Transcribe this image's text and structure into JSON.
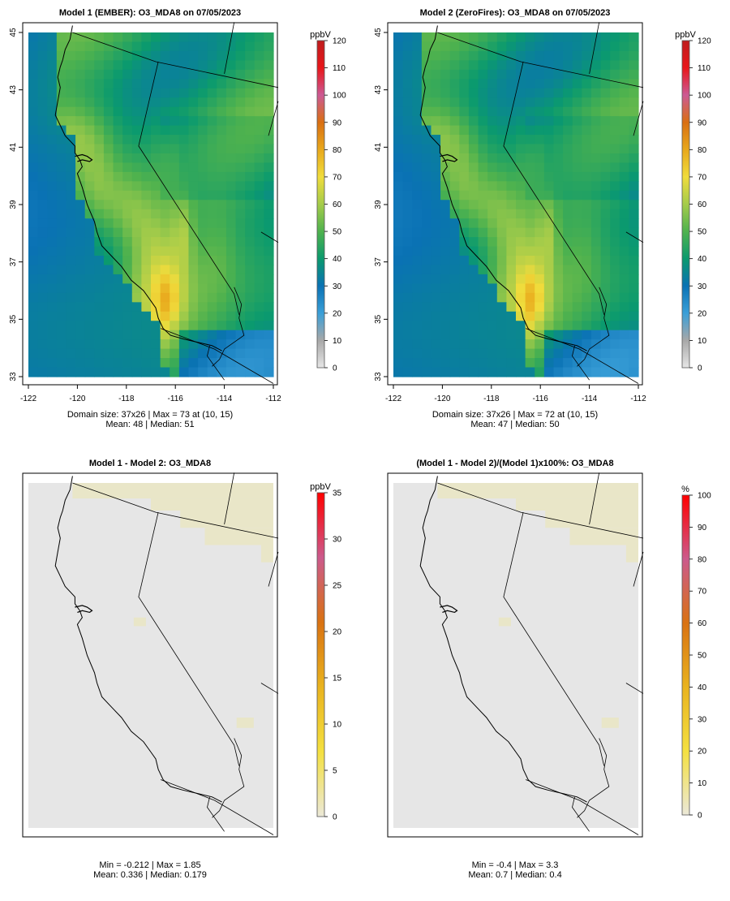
{
  "colors": {
    "ramp_stops": [
      "#e6e6e6",
      "#a8a8a8",
      "#3a9fd8",
      "#0a72b4",
      "#0b9a6e",
      "#4fb24e",
      "#a5cc4a",
      "#f0dc3c",
      "#e8a81c",
      "#d96f12",
      "#cc5a94",
      "#e8161a",
      "#bf1d1d"
    ],
    "diff_ramp_stops": [
      "#ebe8d8",
      "#f4e040",
      "#e9b31f",
      "#d97212",
      "#cc5a8c",
      "#ff0000"
    ],
    "near_zero_fill": "#e6e6e6",
    "slight_positive_fill": "#e9e6c8"
  },
  "panels": [
    {
      "title": "Model 1 (EMBER): O3_MDA8 on 07/05/2023",
      "footer": [
        "Domain size: 37x26 | Max = 73 at (10, 15)",
        "Mean: 48 |  Median: 51"
      ]
    },
    {
      "title": "Model 2 (ZeroFires): O3_MDA8 on 07/05/2023",
      "footer": [
        "Domain size: 37x26 | Max = 72 at (10, 15)",
        "Mean: 47 |  Median: 50"
      ]
    },
    {
      "title": "Model 1 - Model 2: O3_MDA8",
      "footer": [
        "Min = -0.212 | Max = 1.85",
        "Mean: 0.336 |  Median: 0.179"
      ]
    },
    {
      "title": "(Model 1 - Model 2)/(Model 1)x100%: O3_MDA8",
      "footer": [
        "Min = -0.4 | Max = 3.3",
        "Mean: 0.7 |  Median: 0.4"
      ]
    }
  ],
  "chart_data": [
    {
      "type": "heatmap",
      "title": "Model 1 (EMBER): O3_MDA8 on 07/05/2023",
      "x_ticks": [
        "-122",
        "-120",
        "-118",
        "-116",
        "-114",
        "-112"
      ],
      "y_ticks": [
        "33",
        "35",
        "37",
        "39",
        "41",
        "43",
        "45"
      ],
      "xlim": [
        -122,
        -112
      ],
      "ylim": [
        33,
        45
      ],
      "colorbar": {
        "unit": "ppbV",
        "ticks": [
          "0",
          "10",
          "20",
          "30",
          "40",
          "50",
          "60",
          "70",
          "80",
          "90",
          "100",
          "110",
          "120"
        ],
        "range": [
          0,
          120
        ]
      },
      "grid_size": [
        37,
        26
      ],
      "max": 73,
      "max_at": [
        10,
        15
      ],
      "mean": 48,
      "median": 51
    },
    {
      "type": "heatmap",
      "title": "Model 2 (ZeroFires): O3_MDA8 on 07/05/2023",
      "x_ticks": [
        "-122",
        "-120",
        "-118",
        "-116",
        "-114",
        "-112"
      ],
      "y_ticks": [
        "33",
        "35",
        "37",
        "39",
        "41",
        "43",
        "45"
      ],
      "xlim": [
        -122,
        -112
      ],
      "ylim": [
        33,
        45
      ],
      "colorbar": {
        "unit": "ppbV",
        "ticks": [
          "0",
          "10",
          "20",
          "30",
          "40",
          "50",
          "60",
          "70",
          "80",
          "90",
          "100",
          "110",
          "120"
        ],
        "range": [
          0,
          120
        ]
      },
      "grid_size": [
        37,
        26
      ],
      "max": 72,
      "max_at": [
        10,
        15
      ],
      "mean": 47,
      "median": 50
    },
    {
      "type": "heatmap",
      "title": "Model 1 - Model 2: O3_MDA8",
      "colorbar": {
        "unit": "ppbV",
        "ticks": [
          "0",
          "5",
          "10",
          "15",
          "20",
          "25",
          "30",
          "35"
        ],
        "range": [
          0,
          35
        ]
      },
      "min": -0.212,
      "max": 1.85,
      "mean": 0.336,
      "median": 0.179
    },
    {
      "type": "heatmap",
      "title": "(Model 1 - Model 2)/(Model 1)x100%: O3_MDA8",
      "colorbar": {
        "unit": "%",
        "ticks": [
          "0",
          "10",
          "20",
          "30",
          "40",
          "50",
          "60",
          "70",
          "80",
          "90",
          "100"
        ],
        "range": [
          0,
          100
        ]
      },
      "min": -0.4,
      "max": 3.3,
      "mean": 0.7,
      "median": 0.4
    }
  ]
}
